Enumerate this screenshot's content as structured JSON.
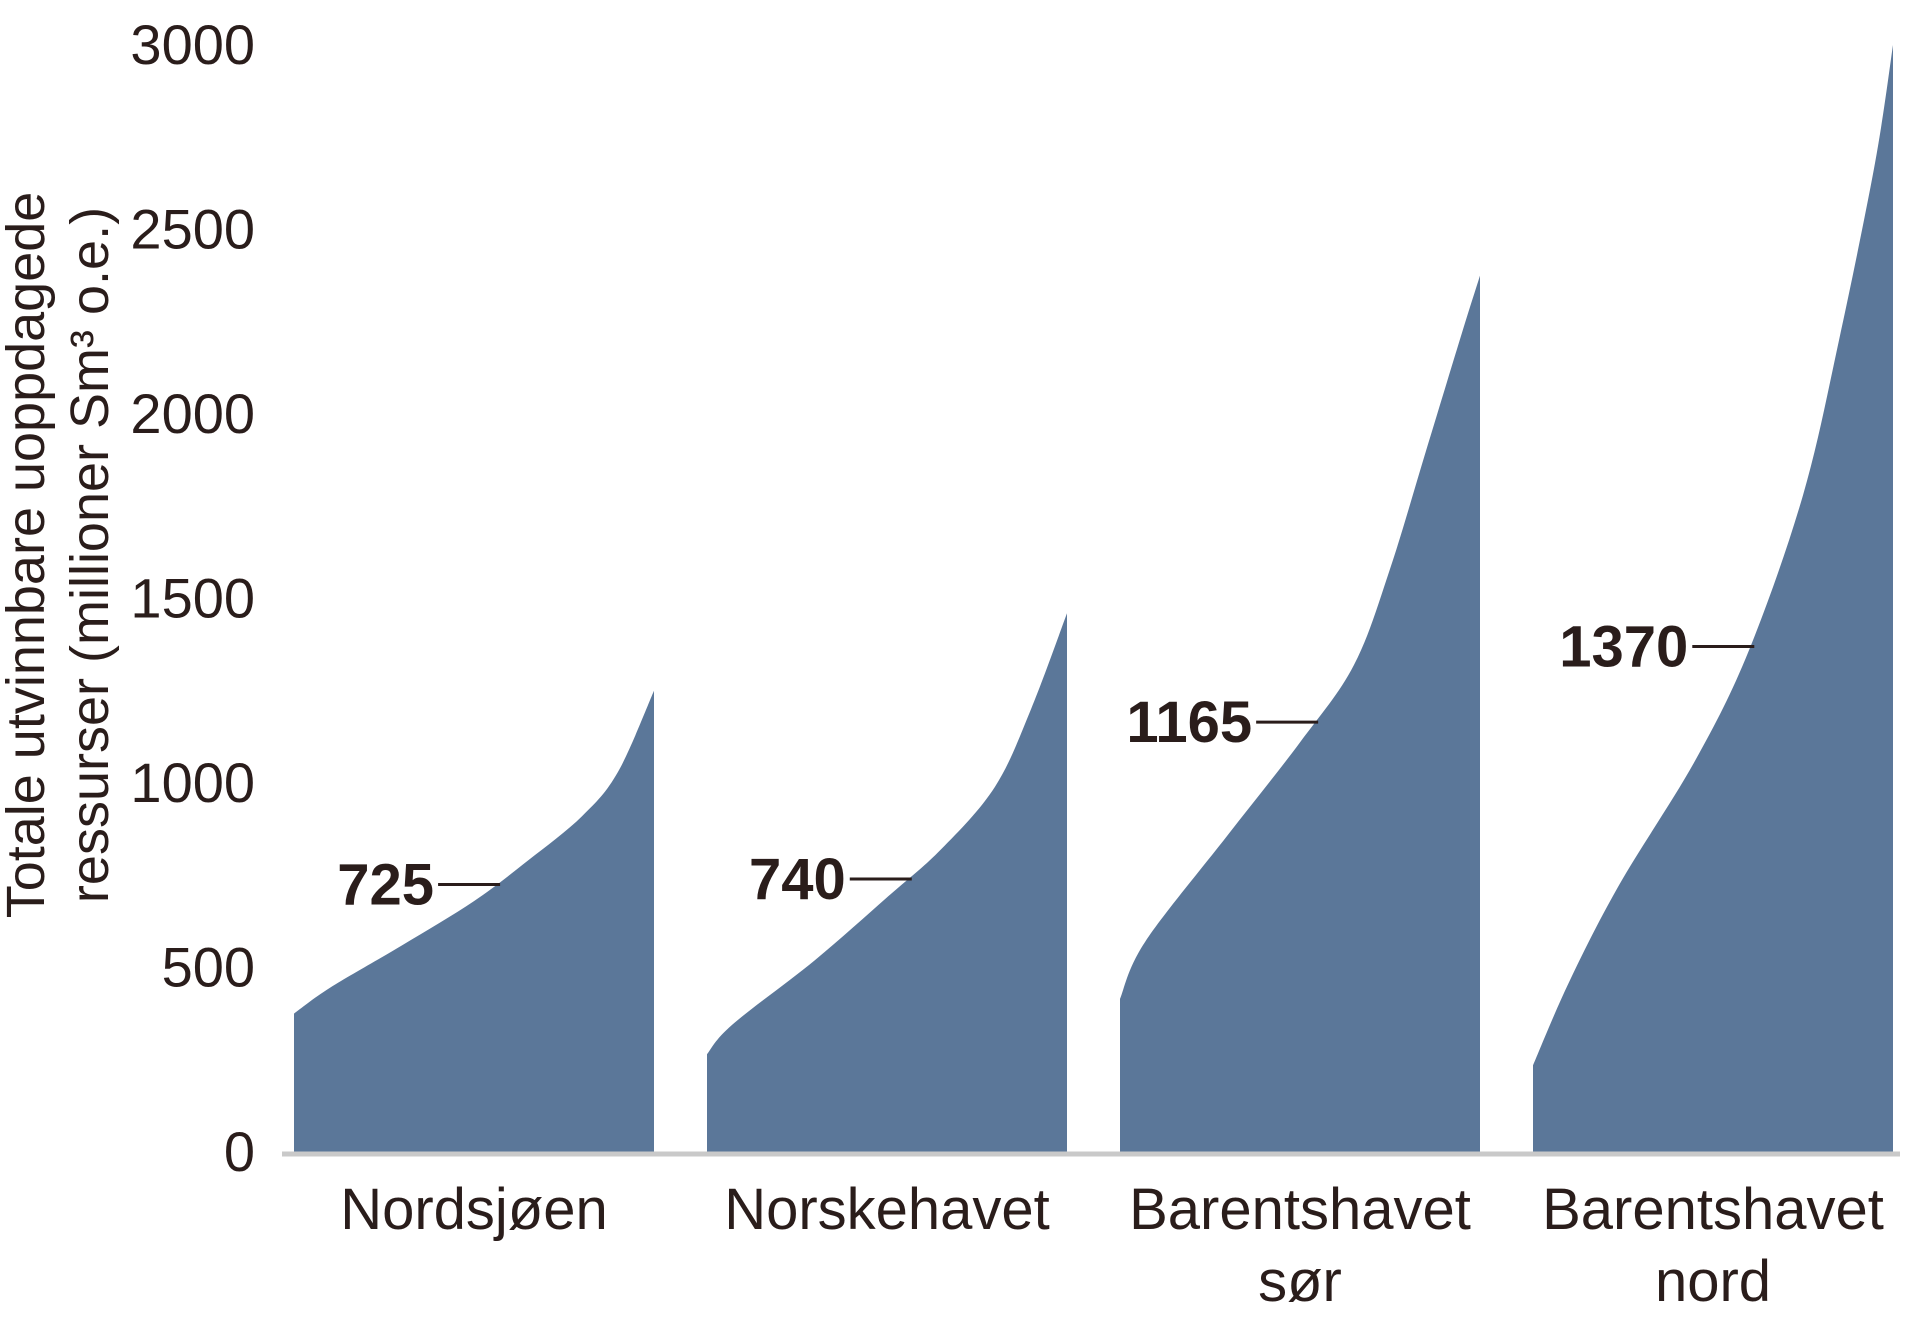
{
  "chart_data": {
    "type": "area",
    "ylabel_line1": "Totale utvinnbare uoppdagede",
    "ylabel_line2": "ressurser (millioner Sm³ o.e.)",
    "ylim": [
      0,
      3000
    ],
    "yticks": [
      "0",
      "500",
      "1000",
      "1500",
      "2000",
      "2500",
      "3000"
    ],
    "grid": false,
    "fill_color": "#5b7799",
    "categories": [
      {
        "label_lines": [
          "Nordsjøen"
        ],
        "mean_label": "725",
        "mean_value": 725,
        "min": 375,
        "max": 1250,
        "curve": [
          [
            0,
            375
          ],
          [
            0.1,
            445
          ],
          [
            0.3,
            560
          ],
          [
            0.5,
            680
          ],
          [
            0.65,
            790
          ],
          [
            0.8,
            910
          ],
          [
            0.9,
            1030
          ],
          [
            1.0,
            1250
          ]
        ]
      },
      {
        "label_lines": [
          "Norskehavet"
        ],
        "mean_label": "740",
        "mean_value": 740,
        "min": 265,
        "max": 1460,
        "curve": [
          [
            0,
            265
          ],
          [
            0.07,
            345
          ],
          [
            0.3,
            520
          ],
          [
            0.5,
            690
          ],
          [
            0.65,
            820
          ],
          [
            0.8,
            990
          ],
          [
            0.9,
            1200
          ],
          [
            1.0,
            1460
          ]
        ]
      },
      {
        "label_lines": [
          "Barentshavet",
          "sør"
        ],
        "mean_label": "1165",
        "mean_value": 1165,
        "min": 415,
        "max": 2375,
        "curve": [
          [
            0,
            415
          ],
          [
            0.07,
            570
          ],
          [
            0.3,
            860
          ],
          [
            0.5,
            1110
          ],
          [
            0.65,
            1320
          ],
          [
            0.75,
            1580
          ],
          [
            0.85,
            1900
          ],
          [
            0.95,
            2220
          ],
          [
            1.0,
            2375
          ]
        ]
      },
      {
        "label_lines": [
          "Barentshavet",
          "nord"
        ],
        "mean_label": "1370",
        "mean_value": 1370,
        "min": 235,
        "max": 3000,
        "curve": [
          [
            0,
            235
          ],
          [
            0.1,
            460
          ],
          [
            0.24,
            725
          ],
          [
            0.45,
            1060
          ],
          [
            0.6,
            1360
          ],
          [
            0.75,
            1780
          ],
          [
            0.85,
            2200
          ],
          [
            0.95,
            2680
          ],
          [
            1.0,
            3000
          ]
        ]
      }
    ]
  }
}
